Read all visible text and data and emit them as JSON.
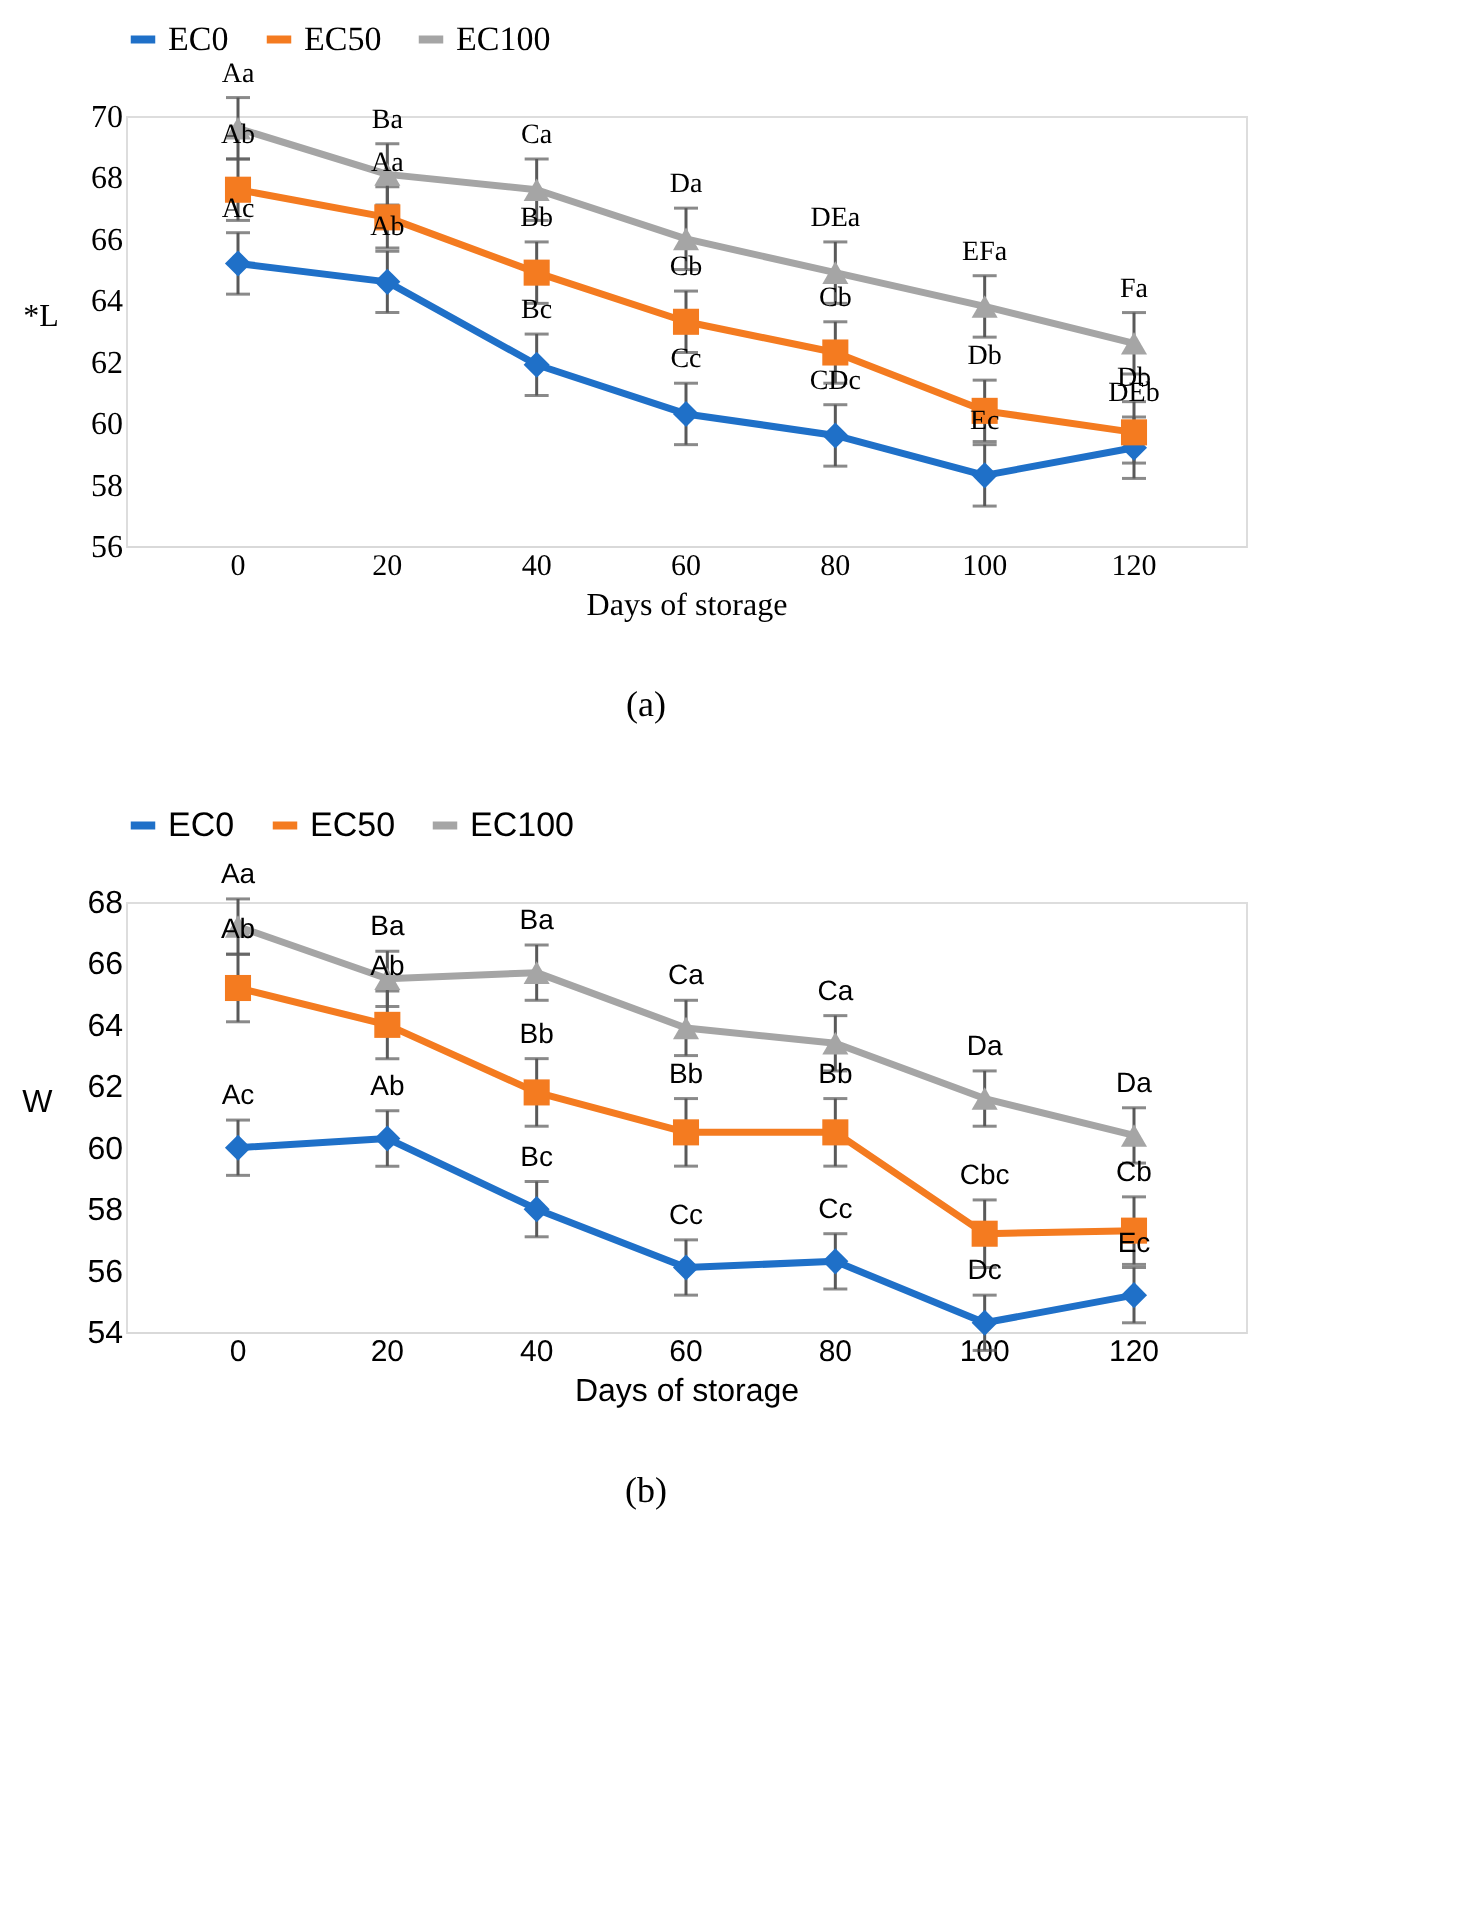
{
  "chart_data": [
    {
      "type": "line",
      "xlabel": "Days of storage",
      "ylabel": "*L",
      "categories": [
        "0",
        "20",
        "40",
        "60",
        "80",
        "100",
        "120"
      ],
      "ylim": [
        56,
        70
      ],
      "yticks": [
        56,
        58,
        60,
        62,
        64,
        66,
        68,
        70
      ],
      "grid": false,
      "legend": "top",
      "line_style": "solid",
      "series": [
        {
          "name": "EC0",
          "color": "#1f70c8",
          "marker": "diamond",
          "values": [
            65.2,
            64.6,
            61.9,
            60.3,
            59.6,
            58.3,
            59.2
          ],
          "errors": [
            1,
            1,
            1,
            1,
            1,
            1,
            1
          ]
        },
        {
          "name": "EC50",
          "color": "#f47b20",
          "marker": "square",
          "values": [
            67.6,
            66.7,
            64.9,
            63.3,
            62.3,
            60.4,
            59.7
          ],
          "errors": [
            1,
            1,
            1,
            1,
            1,
            1,
            1
          ]
        },
        {
          "name": "EC100",
          "color": "#a5a5a5",
          "marker": "triangle",
          "values": [
            69.6,
            68.1,
            67.6,
            66.0,
            64.9,
            63.8,
            62.6
          ],
          "errors": [
            1,
            1,
            1,
            1,
            1,
            1,
            1
          ]
        }
      ],
      "annotations": [
        {
          "text": "Aa",
          "x": "0",
          "y": 69.6
        },
        {
          "text": "Ab",
          "x": "0",
          "y": 67.6
        },
        {
          "text": "Ac",
          "x": "0",
          "y": 65.2
        },
        {
          "text": "Ba",
          "x": "20",
          "y": 68.1
        },
        {
          "text": "Aa",
          "x": "20",
          "y": 66.7
        },
        {
          "text": "Ab",
          "x": "20",
          "y": 64.6
        },
        {
          "text": "Ca",
          "x": "40",
          "y": 67.6
        },
        {
          "text": "Bb",
          "x": "40",
          "y": 64.9
        },
        {
          "text": "Bc",
          "x": "40",
          "y": 61.9
        },
        {
          "text": "Da",
          "x": "60",
          "y": 66.0
        },
        {
          "text": "Cb",
          "x": "60",
          "y": 63.3
        },
        {
          "text": "Cc",
          "x": "60",
          "y": 60.3
        },
        {
          "text": "DEa",
          "x": "80",
          "y": 64.9
        },
        {
          "text": "Cb",
          "x": "80",
          "y": 62.3
        },
        {
          "text": "CDc",
          "x": "80",
          "y": 59.6
        },
        {
          "text": "EFa",
          "x": "100",
          "y": 63.8
        },
        {
          "text": "Db",
          "x": "100",
          "y": 60.4
        },
        {
          "text": "Ec",
          "x": "100",
          "y": 58.3
        },
        {
          "text": "Fa",
          "x": "120",
          "y": 62.6
        },
        {
          "text": "Db",
          "x": "120",
          "y": 59.7
        },
        {
          "text": "DEb",
          "x": "120",
          "y": 59.2
        },
        "(a)"
      ]
    },
    {
      "type": "line",
      "xlabel": "Days of storage",
      "ylabel": "W",
      "categories": [
        "0",
        "20",
        "40",
        "60",
        "80",
        "100",
        "120"
      ],
      "ylim": [
        54,
        68
      ],
      "yticks": [
        54,
        56,
        58,
        60,
        62,
        64,
        66,
        68
      ],
      "grid": false,
      "legend": "top",
      "line_style": "solid",
      "series": [
        {
          "name": "EC0",
          "color": "#1f70c8",
          "marker": "diamond",
          "values": [
            60.0,
            60.3,
            58.0,
            56.1,
            56.3,
            54.3,
            55.2
          ],
          "errors": [
            0.9,
            0.9,
            0.9,
            0.9,
            0.9,
            0.9,
            0.9
          ]
        },
        {
          "name": "EC50",
          "color": "#f47b20",
          "marker": "square",
          "values": [
            65.2,
            64.0,
            61.8,
            60.5,
            60.5,
            57.2,
            57.3
          ],
          "errors": [
            1.1,
            1.1,
            1.1,
            1.1,
            1.1,
            1.1,
            1.1
          ]
        },
        {
          "name": "EC100",
          "color": "#a5a5a5",
          "marker": "triangle",
          "values": [
            67.2,
            65.5,
            65.7,
            63.9,
            63.4,
            61.6,
            60.4
          ],
          "errors": [
            0.9,
            0.9,
            0.9,
            0.9,
            0.9,
            0.9,
            0.9
          ]
        }
      ],
      "annotations": [
        {
          "text": "Aa",
          "x": "0",
          "y": 67.2
        },
        {
          "text": "Ab",
          "x": "0",
          "y": 65.2
        },
        {
          "text": "Ac",
          "x": "0",
          "y": 60.0
        },
        {
          "text": "Ba",
          "x": "20",
          "y": 65.5
        },
        {
          "text": "Ab",
          "x": "20",
          "y": 64.0
        },
        {
          "text": "Ab",
          "x": "20",
          "y": 60.3
        },
        {
          "text": "Ba",
          "x": "40",
          "y": 65.7
        },
        {
          "text": "Bb",
          "x": "40",
          "y": 61.8
        },
        {
          "text": "Bc",
          "x": "40",
          "y": 58.0
        },
        {
          "text": "Ca",
          "x": "60",
          "y": 63.9
        },
        {
          "text": "Bb",
          "x": "60",
          "y": 60.5
        },
        {
          "text": "Cc",
          "x": "60",
          "y": 56.1
        },
        {
          "text": "Ca",
          "x": "80",
          "y": 63.4
        },
        {
          "text": "Bb",
          "x": "80",
          "y": 60.5
        },
        {
          "text": "Cc",
          "x": "80",
          "y": 56.3
        },
        {
          "text": "Da",
          "x": "100",
          "y": 61.6
        },
        {
          "text": "Cbc",
          "x": "100",
          "y": 57.2
        },
        {
          "text": "Dc",
          "x": "100",
          "y": 54.3
        },
        {
          "text": "Da",
          "x": "120",
          "y": 60.4
        },
        {
          "text": "Cb",
          "x": "120",
          "y": 57.3
        },
        {
          "text": "Ec",
          "x": "120",
          "y": 55.2
        },
        "(b)"
      ]
    }
  ]
}
